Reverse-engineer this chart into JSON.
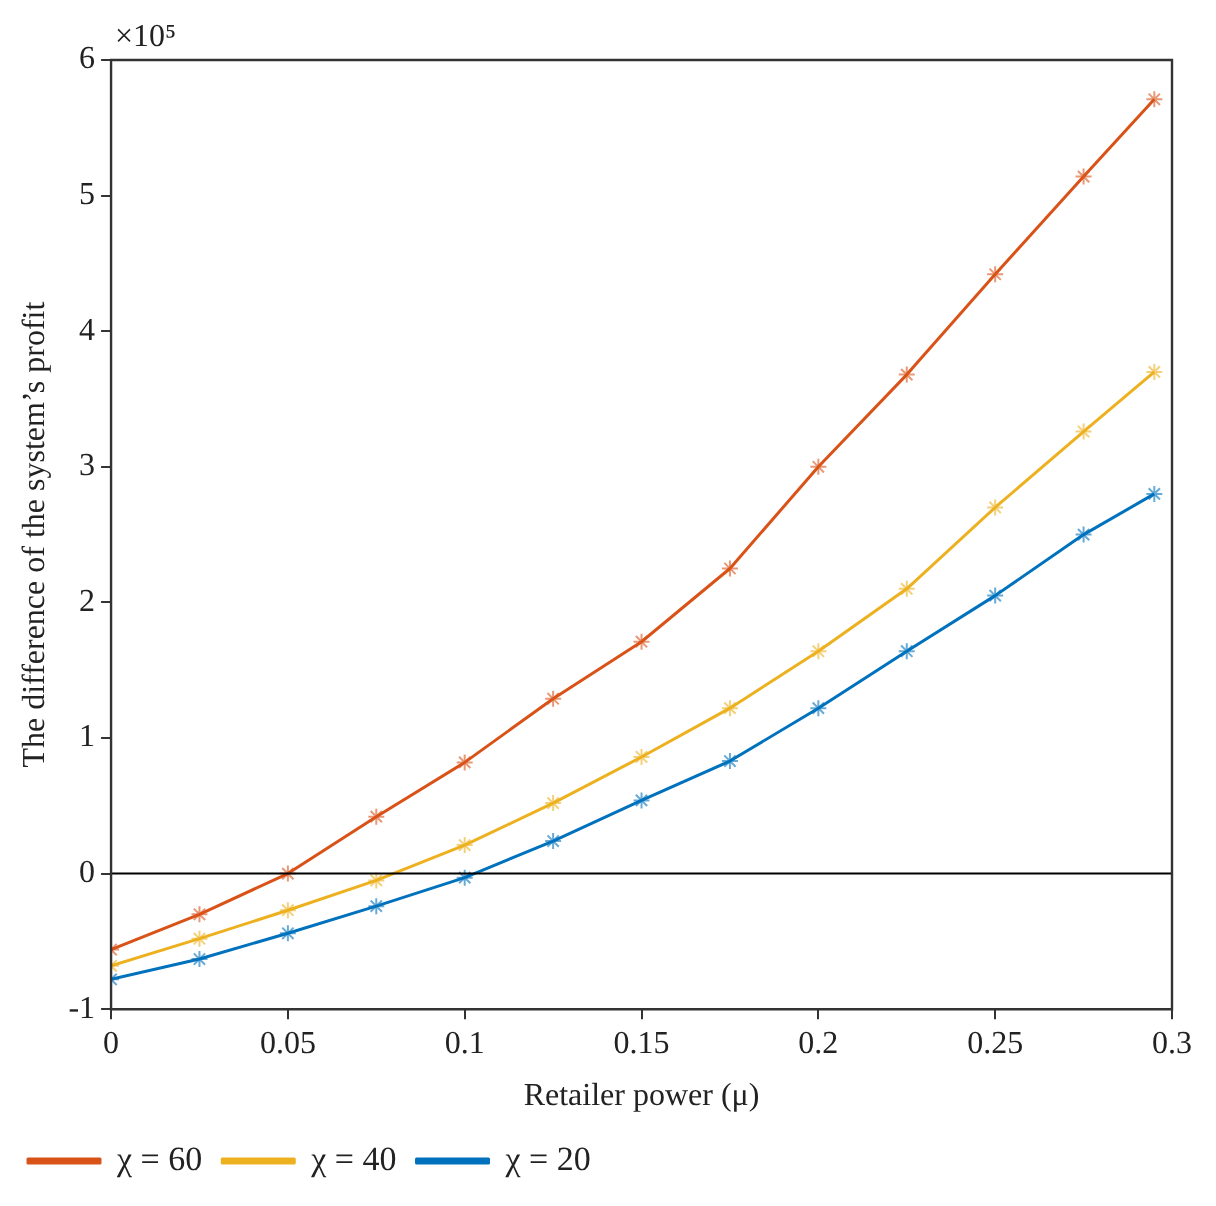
{
  "chart_data": {
    "type": "line",
    "xlabel": "Retailer power (μ)",
    "ylabel": "The difference of the system’s profit",
    "annotations": [
      "×10⁵"
    ],
    "x": [
      0,
      0.025,
      0.05,
      0.075,
      0.1,
      0.125,
      0.15,
      0.175,
      0.2,
      0.225,
      0.25,
      0.275,
      0.295
    ],
    "series": [
      {
        "name": "χ = 60",
        "color": "#d95319",
        "values": [
          -0.56,
          -0.3,
          0.0,
          0.42,
          0.82,
          1.29,
          1.71,
          2.25,
          3.0,
          3.68,
          4.42,
          5.14,
          5.71
        ]
      },
      {
        "name": "χ = 40",
        "color": "#edb120",
        "values": [
          -0.68,
          -0.48,
          -0.27,
          -0.05,
          0.21,
          0.52,
          0.86,
          1.22,
          1.64,
          2.1,
          2.7,
          3.26,
          3.7
        ]
      },
      {
        "name": "χ = 20",
        "color": "#0072bd",
        "values": [
          -0.78,
          -0.63,
          -0.44,
          -0.24,
          -0.03,
          0.24,
          0.54,
          0.83,
          1.22,
          1.64,
          2.05,
          2.5,
          2.8
        ]
      }
    ],
    "xlim": [
      0,
      0.3
    ],
    "xticks": [
      0,
      0.05,
      0.1,
      0.15,
      0.2,
      0.25,
      0.3
    ],
    "ylim": [
      -1,
      6
    ],
    "yticks": [
      -1,
      0,
      1,
      2,
      3,
      4,
      5,
      6
    ],
    "ref_lines": [
      {
        "axis": "y",
        "value": 0,
        "color": "#000000"
      }
    ],
    "grid": false,
    "legend": "bottom left",
    "marker": "cross",
    "line_style": "solid"
  }
}
